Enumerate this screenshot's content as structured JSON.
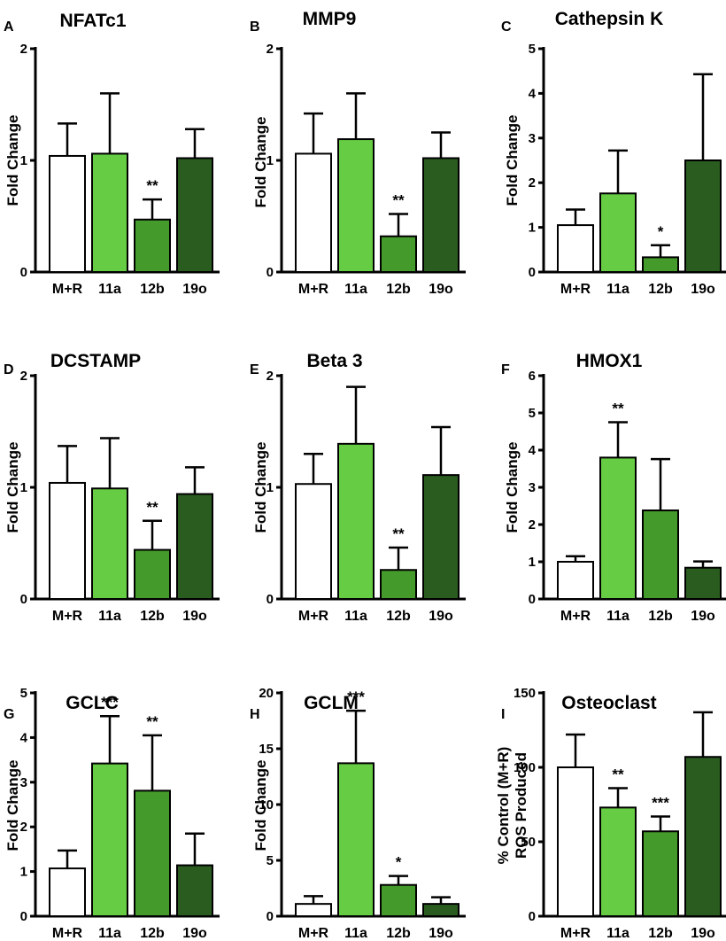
{
  "chart_data": [
    {
      "panel": "A",
      "title": "NFATc1",
      "type": "bar",
      "ylabel": "Fold Change",
      "categories": [
        "M+R",
        "11a",
        "12b",
        "19o"
      ],
      "values": [
        1.04,
        1.06,
        0.47,
        1.02
      ],
      "errors": [
        0.29,
        0.54,
        0.18,
        0.26
      ],
      "significance": [
        "",
        "",
        "**",
        ""
      ],
      "ylim": [
        0,
        2
      ],
      "yticks": [
        "0",
        "1",
        "2"
      ]
    },
    {
      "panel": "B",
      "title": "MMP9",
      "type": "bar",
      "ylabel": "Fold Change",
      "categories": [
        "M+R",
        "11a",
        "12b",
        "19o"
      ],
      "values": [
        1.06,
        1.19,
        0.32,
        1.02
      ],
      "errors": [
        0.36,
        0.41,
        0.2,
        0.23
      ],
      "significance": [
        "",
        "",
        "**",
        ""
      ],
      "ylim": [
        0,
        2
      ],
      "yticks": [
        "0",
        "1",
        "2"
      ]
    },
    {
      "panel": "C",
      "title": "Cathepsin K",
      "type": "bar",
      "ylabel": "Fold Change",
      "categories": [
        "M+R",
        "11a",
        "12b",
        "19o"
      ],
      "values": [
        1.05,
        1.76,
        0.33,
        2.5
      ],
      "errors": [
        0.35,
        0.96,
        0.27,
        1.93
      ],
      "significance": [
        "",
        "",
        "*",
        ""
      ],
      "ylim": [
        0,
        5
      ],
      "yticks": [
        "0",
        "1",
        "2",
        "3",
        "4",
        "5"
      ]
    },
    {
      "panel": "D",
      "title": "DCSTAMP",
      "type": "bar",
      "ylabel": "Fold Change",
      "categories": [
        "M+R",
        "11a",
        "12b",
        "19o"
      ],
      "values": [
        1.04,
        0.99,
        0.44,
        0.94
      ],
      "errors": [
        0.33,
        0.45,
        0.26,
        0.24
      ],
      "significance": [
        "",
        "",
        "**",
        ""
      ],
      "ylim": [
        0,
        2
      ],
      "yticks": [
        "0",
        "1",
        "2"
      ]
    },
    {
      "panel": "E",
      "title": "Beta 3",
      "type": "bar",
      "ylabel": "Fold Change",
      "categories": [
        "M+R",
        "11a",
        "12b",
        "19o"
      ],
      "values": [
        1.03,
        1.39,
        0.26,
        1.11
      ],
      "errors": [
        0.27,
        0.51,
        0.2,
        0.43
      ],
      "significance": [
        "",
        "",
        "**",
        ""
      ],
      "ylim": [
        0,
        2
      ],
      "yticks": [
        "0",
        "1",
        "2"
      ]
    },
    {
      "panel": "F",
      "title": "HMOX1",
      "type": "bar",
      "ylabel": "Fold Change",
      "categories": [
        "M+R",
        "11a",
        "12b",
        "19o"
      ],
      "values": [
        1.0,
        3.8,
        2.38,
        0.84
      ],
      "errors": [
        0.15,
        0.95,
        1.38,
        0.17
      ],
      "significance": [
        "",
        "**",
        "",
        ""
      ],
      "ylim": [
        0,
        6
      ],
      "yticks": [
        "0",
        "1",
        "2",
        "3",
        "4",
        "5",
        "6"
      ]
    },
    {
      "panel": "G",
      "title": "GCLC",
      "type": "bar",
      "ylabel": "Fold Change",
      "categories": [
        "M+R",
        "11a",
        "12b",
        "19o"
      ],
      "values": [
        1.07,
        3.42,
        2.81,
        1.14
      ],
      "errors": [
        0.4,
        1.06,
        1.24,
        0.71
      ],
      "significance": [
        "",
        "***",
        "**",
        ""
      ],
      "ylim": [
        0,
        5
      ],
      "yticks": [
        "0",
        "1",
        "2",
        "3",
        "4",
        "5"
      ]
    },
    {
      "panel": "H",
      "title": "GCLM",
      "type": "bar",
      "ylabel": "Fold Change",
      "categories": [
        "M+R",
        "11a",
        "12b",
        "19o"
      ],
      "values": [
        1.1,
        13.7,
        2.8,
        1.1
      ],
      "errors": [
        0.7,
        4.7,
        0.8,
        0.6
      ],
      "significance": [
        "",
        "***",
        "*",
        ""
      ],
      "ylim": [
        0,
        20
      ],
      "yticks": [
        "0",
        "5",
        "10",
        "15",
        "20"
      ]
    },
    {
      "panel": "I",
      "title": "Osteoclast",
      "type": "bar",
      "ylabel": "% Control (M+R)",
      "ylabel2": "ROS Produced",
      "categories": [
        "M+R",
        "11a",
        "12b",
        "19o"
      ],
      "values": [
        100,
        73,
        57,
        107
      ],
      "errors": [
        22,
        13,
        10,
        30
      ],
      "significance": [
        "",
        "**",
        "***",
        ""
      ],
      "ylim": [
        0,
        150
      ],
      "yticks": [
        "0",
        "50",
        "100",
        "150"
      ]
    }
  ],
  "colors": {
    "bars": [
      "#ffffff",
      "#66cc44",
      "#449a2a",
      "#2a5c20"
    ],
    "outline": "#000000"
  }
}
